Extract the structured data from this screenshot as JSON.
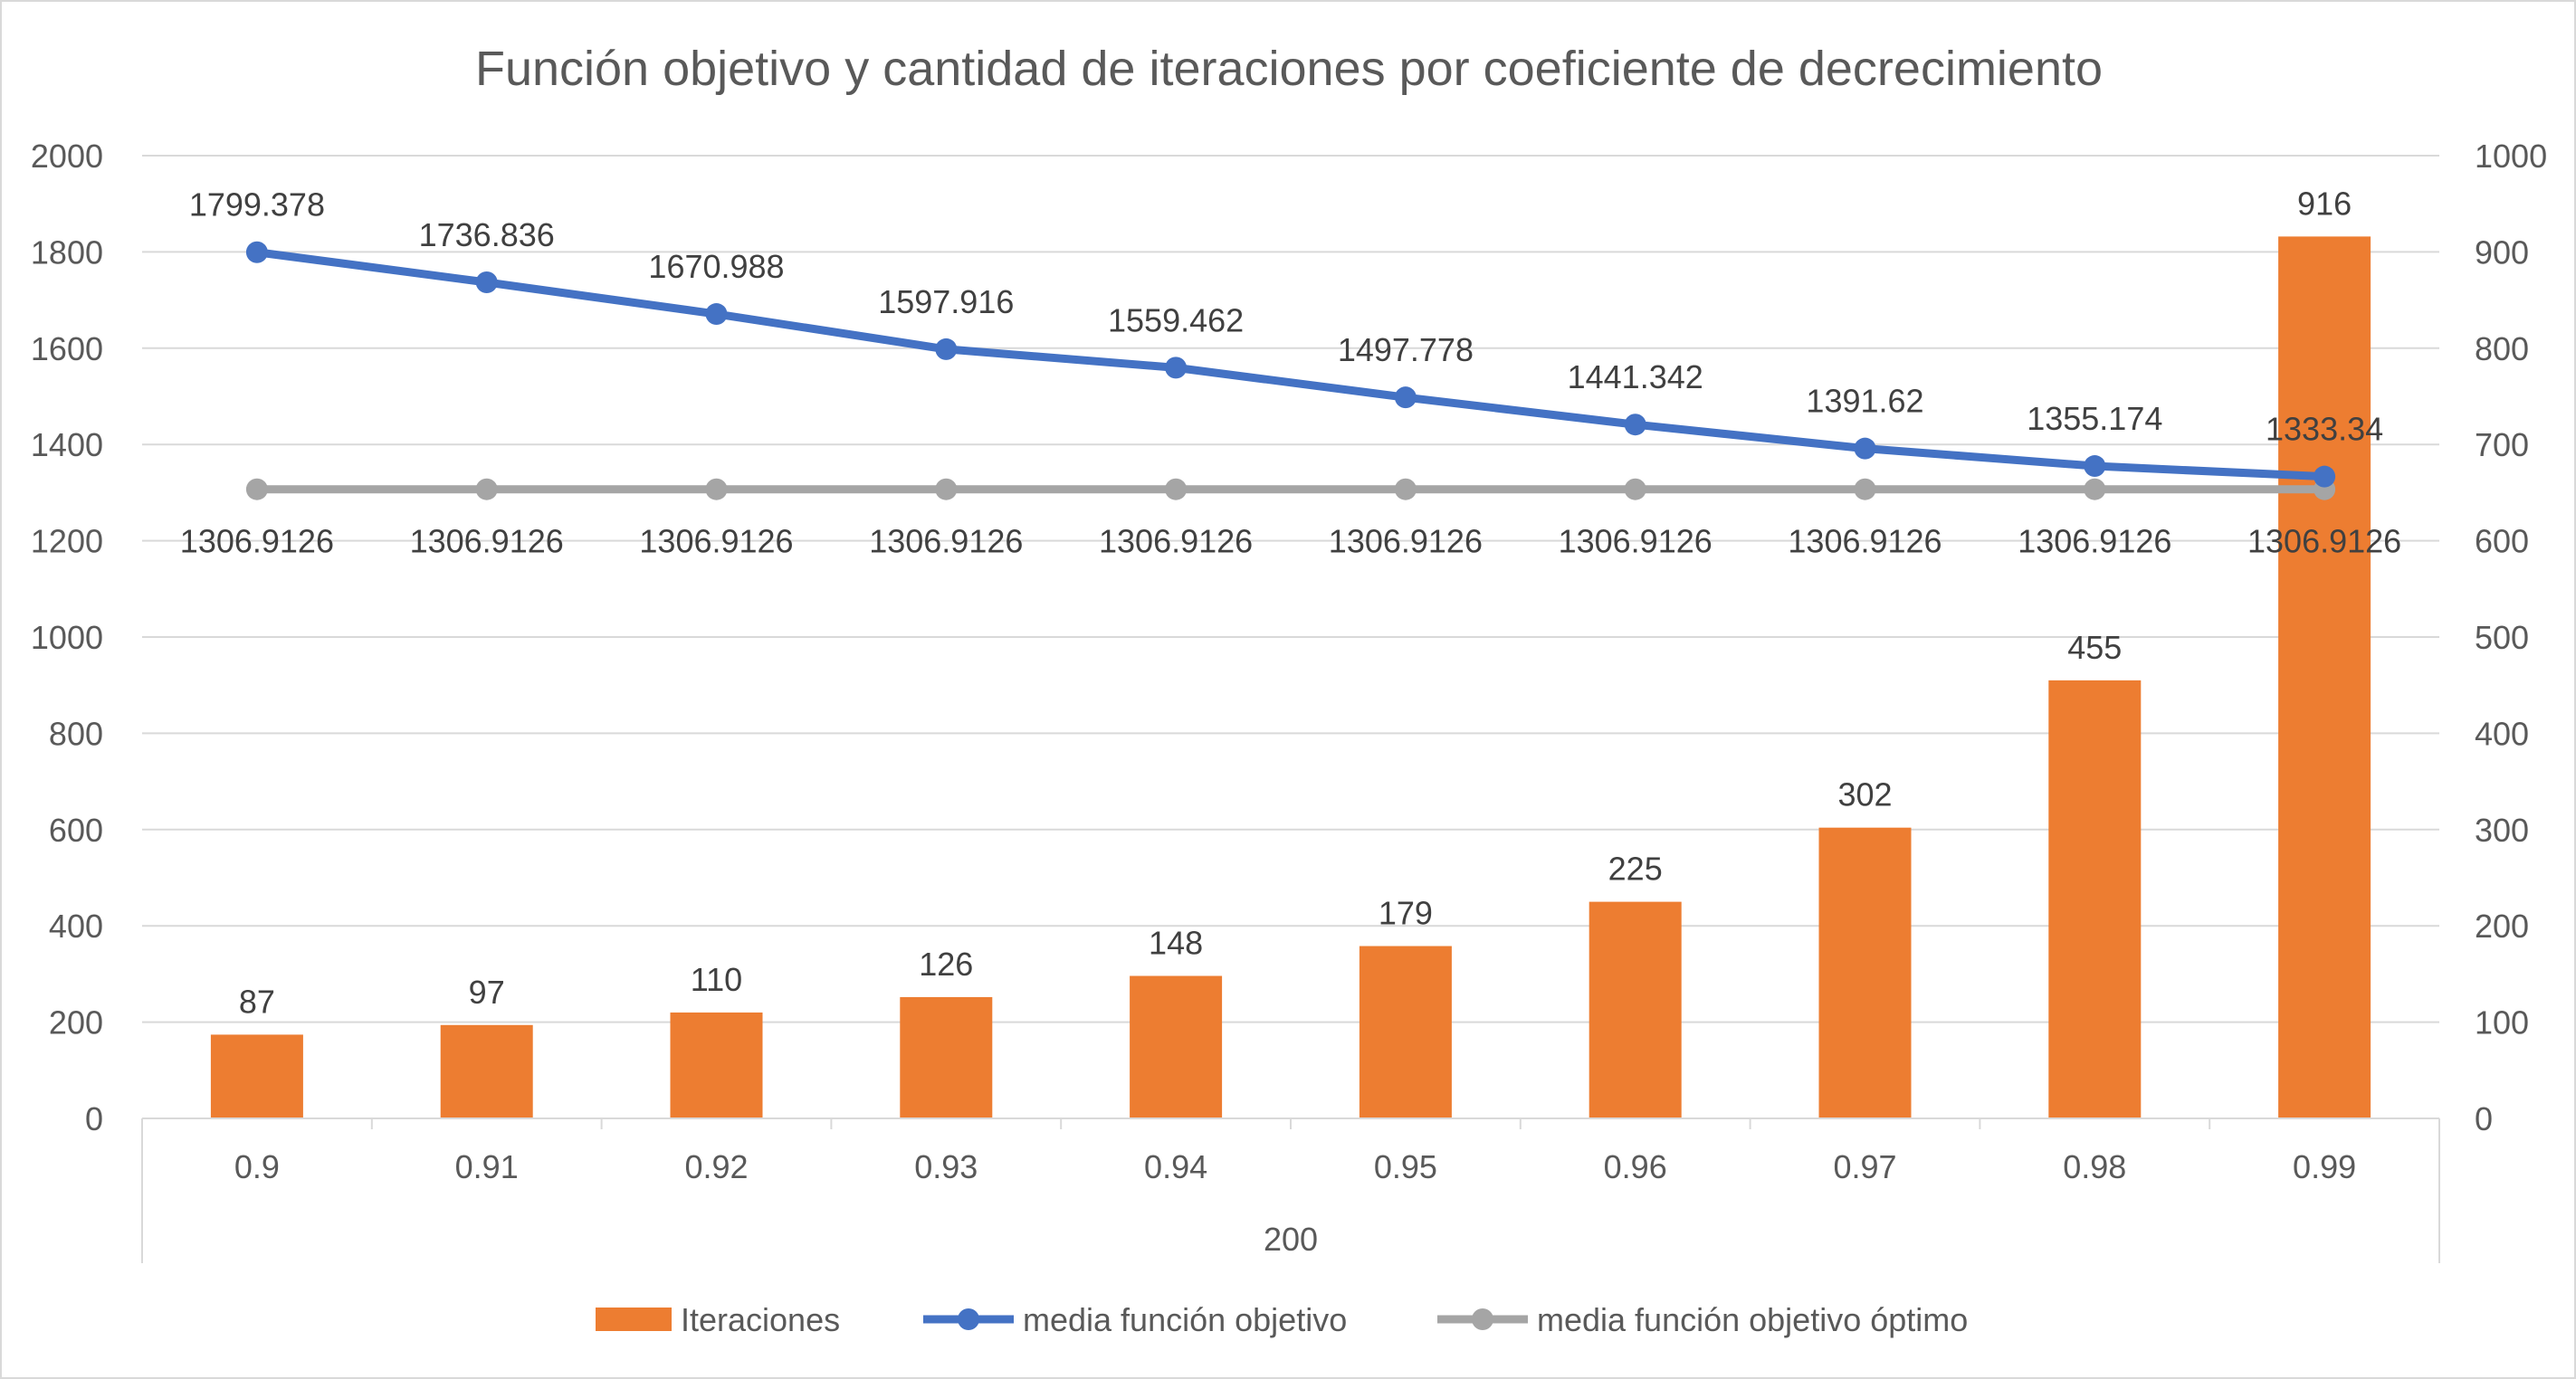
{
  "chart_data": {
    "type": "bar",
    "title": "Función objetivo y cantidad de iteraciones por coeficiente de decrecimiento",
    "categories": [
      "0.9",
      "0.91",
      "0.92",
      "0.93",
      "0.94",
      "0.95",
      "0.96",
      "0.97",
      "0.98",
      "0.99"
    ],
    "group_label": "200",
    "y_left": {
      "min": 0,
      "max": 2000,
      "ticks": [
        0,
        200,
        400,
        600,
        800,
        1000,
        1200,
        1400,
        1600,
        1800,
        2000
      ]
    },
    "y_right": {
      "min": 0,
      "max": 1000,
      "ticks": [
        0,
        100,
        200,
        300,
        400,
        500,
        600,
        700,
        800,
        900,
        1000
      ]
    },
    "grid": true,
    "legend_position": "bottom",
    "series": [
      {
        "name": "Iteraciones",
        "kind": "bar",
        "axis": "right",
        "color": "#ED7D31",
        "values": [
          87,
          97,
          110,
          126,
          148,
          179,
          225,
          302,
          455,
          916
        ],
        "labels": [
          "87",
          "97",
          "110",
          "126",
          "148",
          "179",
          "225",
          "302",
          "455",
          "916"
        ]
      },
      {
        "name": "media función objetivo",
        "kind": "line",
        "axis": "left",
        "color": "#4472C4",
        "values": [
          1799.378,
          1736.836,
          1670.988,
          1597.916,
          1559.462,
          1497.778,
          1441.342,
          1391.62,
          1355.174,
          1333.34
        ],
        "labels": [
          "1799.378",
          "1736.836",
          "1670.988",
          "1597.916",
          "1559.462",
          "1497.778",
          "1441.342",
          "1391.62",
          "1355.174",
          "1333.34"
        ]
      },
      {
        "name": "media función objetivo óptimo",
        "kind": "line",
        "axis": "left",
        "color": "#A5A5A5",
        "values": [
          1306.9126,
          1306.9126,
          1306.9126,
          1306.9126,
          1306.9126,
          1306.9126,
          1306.9126,
          1306.9126,
          1306.9126,
          1306.9126
        ],
        "labels": [
          "1306.9126",
          "1306.9126",
          "1306.9126",
          "1306.9126",
          "1306.9126",
          "1306.9126",
          "1306.9126",
          "1306.9126",
          "1306.9126",
          "1306.9126"
        ]
      }
    ]
  }
}
